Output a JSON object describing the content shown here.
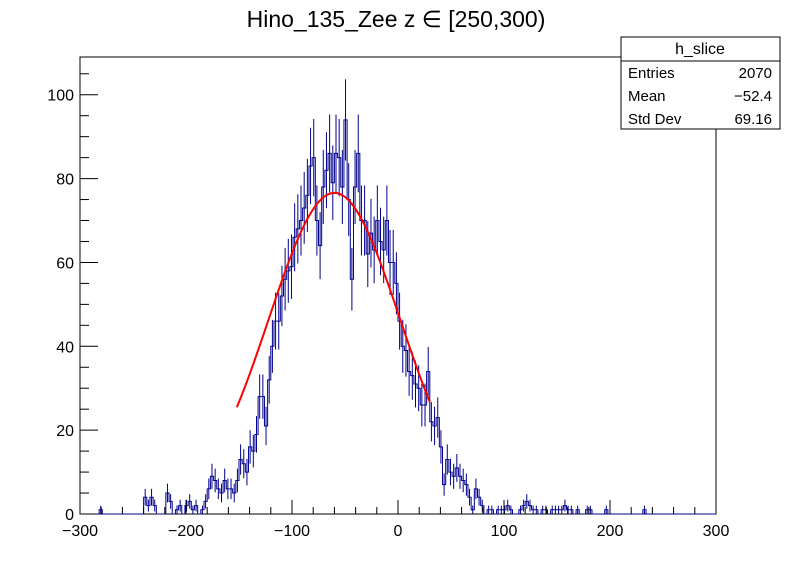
{
  "chart_data": {
    "type": "histogram",
    "title": "Hino_135_Zee z  ∈ [250,300)",
    "xlabel": "",
    "ylabel": "",
    "xlim": [
      -300,
      300
    ],
    "ylim": [
      0,
      109
    ],
    "x_ticks": [
      -300,
      -200,
      -100,
      0,
      100,
      200,
      300
    ],
    "y_ticks": [
      0,
      20,
      40,
      60,
      80,
      100
    ],
    "bin_start": -300,
    "bin_width": 3,
    "bin_values": [
      0,
      0,
      0,
      0,
      0,
      0,
      1,
      0,
      0,
      0,
      0,
      0,
      0,
      0,
      0,
      0,
      0,
      0,
      0,
      0,
      4,
      2,
      4,
      2,
      0,
      0,
      0,
      5,
      3,
      0,
      1,
      2,
      0,
      2,
      3,
      1,
      2,
      0,
      1,
      3,
      6,
      9,
      8,
      6,
      5,
      8,
      6,
      6,
      5,
      8,
      13,
      12,
      10,
      16,
      15,
      19,
      28,
      28,
      21,
      32,
      40,
      46,
      46,
      52,
      56,
      58,
      59,
      66,
      68,
      70,
      73,
      76,
      83,
      85,
      70,
      64,
      78,
      82,
      86,
      79,
      86,
      85,
      78,
      94,
      75,
      56,
      78,
      86,
      70,
      70,
      62,
      67,
      63,
      70,
      65,
      63,
      70,
      60,
      60,
      55,
      46,
      40,
      39,
      34,
      33,
      31,
      30,
      26,
      26,
      34,
      22,
      21,
      23,
      16,
      7,
      13,
      10,
      9,
      11,
      9,
      8,
      7,
      4,
      1,
      6,
      4,
      2,
      0,
      1,
      1,
      0,
      1,
      1,
      1,
      2,
      1,
      0,
      0,
      1,
      2,
      3,
      2,
      1,
      1,
      0,
      1,
      1,
      0,
      1,
      1,
      1,
      1,
      2,
      1,
      1,
      0,
      1,
      0,
      0,
      1,
      1,
      0,
      0,
      0,
      0,
      1,
      0,
      0,
      0,
      0,
      0,
      0,
      0,
      0,
      0,
      0,
      0,
      1,
      0,
      0,
      0,
      0,
      0,
      0,
      0,
      0,
      0,
      0,
      0,
      0,
      0,
      0,
      0,
      0,
      0,
      0,
      0,
      0,
      0,
      0
    ],
    "series": [
      {
        "name": "h_slice",
        "style": "histogram with error bars",
        "color": "#00008b"
      },
      {
        "name": "gaussian fit",
        "style": "line",
        "color": "#ff0000",
        "fit_range": [
          -152,
          30
        ],
        "amplitude": 76.6,
        "mean": -60,
        "sigma": 62
      }
    ]
  },
  "stats_box": {
    "title": "h_slice",
    "rows": [
      {
        "label": "Entries",
        "value": "2070"
      },
      {
        "label": "Mean",
        "value": "−52.4"
      },
      {
        "label": "Std Dev",
        "value": "69.16"
      }
    ]
  },
  "colors": {
    "hist": "#00008b",
    "fit": "#ff0000",
    "frame": "#000000"
  }
}
